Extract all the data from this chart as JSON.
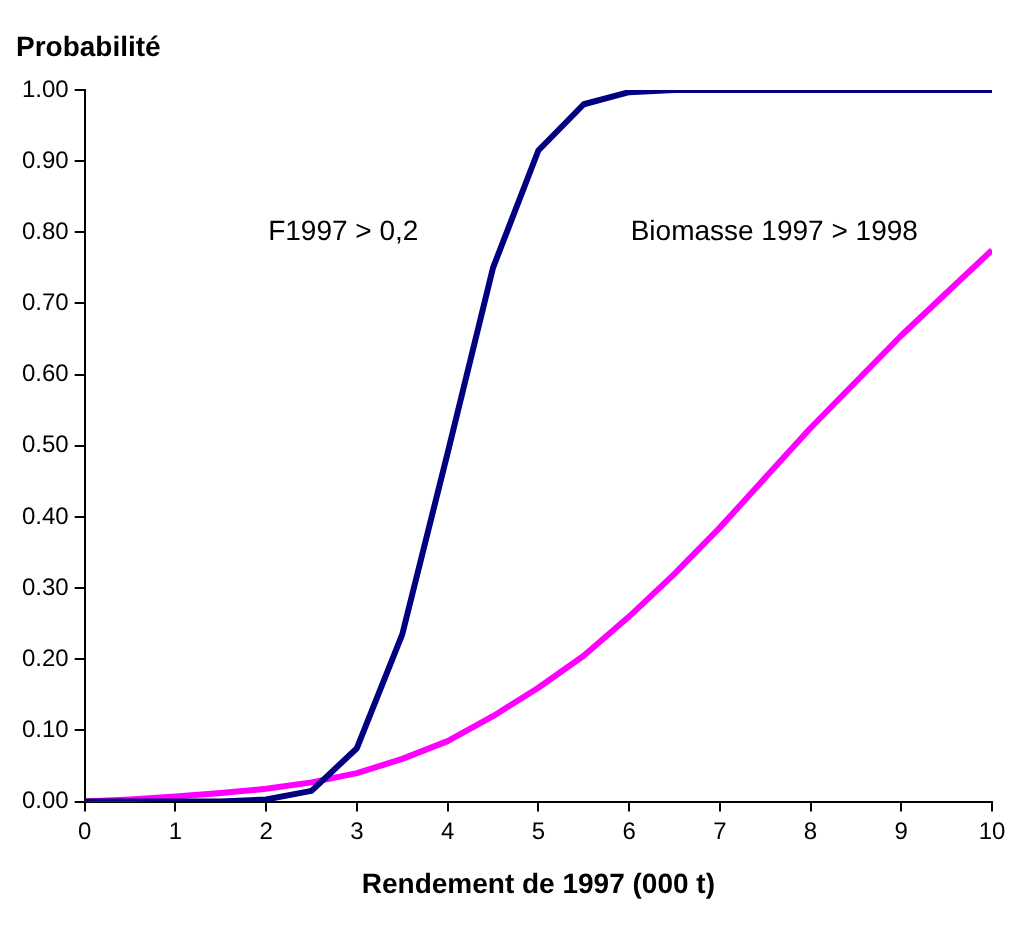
{
  "chart_data": {
    "type": "line",
    "xlabel": "Rendement de 1997 (000 t)",
    "ylabel": "Probabilité",
    "x": [
      0,
      0.5,
      1,
      1.5,
      2,
      2.5,
      3,
      3.5,
      4,
      4.5,
      5,
      5.5,
      6,
      6.5,
      7,
      7.5,
      8,
      8.5,
      9,
      9.5,
      10
    ],
    "series": [
      {
        "color": "#000080",
        "values": [
          0,
          0,
          0,
          0,
          0.003,
          0.015,
          0.075,
          0.235,
          0.49,
          0.75,
          0.915,
          0.98,
          0.997,
          1,
          1,
          1,
          1,
          1,
          1,
          1,
          1
        ]
      },
      {
        "color": "#ff00ff",
        "values": [
          0,
          0.003,
          0.007,
          0.012,
          0.018,
          0.027,
          0.04,
          0.06,
          0.085,
          0.12,
          0.16,
          0.205,
          0.26,
          0.32,
          0.385,
          0.455,
          0.525,
          0.59,
          0.655,
          0.715,
          0.775
        ]
      }
    ],
    "annotations": [
      "F1997 > 0,2",
      "Biomasse 1997 > 1998"
    ],
    "xlim": [
      0,
      10
    ],
    "xticks": [
      0,
      1,
      2,
      3,
      4,
      5,
      6,
      7,
      8,
      9,
      10
    ],
    "ylim": [
      0,
      1
    ],
    "yticks": [
      {
        "value": 0,
        "label": "0.00"
      },
      {
        "value": 0.1,
        "label": "0.10"
      },
      {
        "value": 0.2,
        "label": "0.20"
      },
      {
        "value": 0.3,
        "label": "0.30"
      },
      {
        "value": 0.4,
        "label": "0.40"
      },
      {
        "value": 0.5,
        "label": "0.50"
      },
      {
        "value": 0.6,
        "label": "0.60"
      },
      {
        "value": 0.7,
        "label": "0.70"
      },
      {
        "value": 0.8,
        "label": "0.80"
      },
      {
        "value": 0.9,
        "label": "0.90"
      },
      {
        "value": 1,
        "label": "1.00"
      }
    ],
    "grid": false,
    "legend": false,
    "marker": "none",
    "line_style": "solid"
  }
}
